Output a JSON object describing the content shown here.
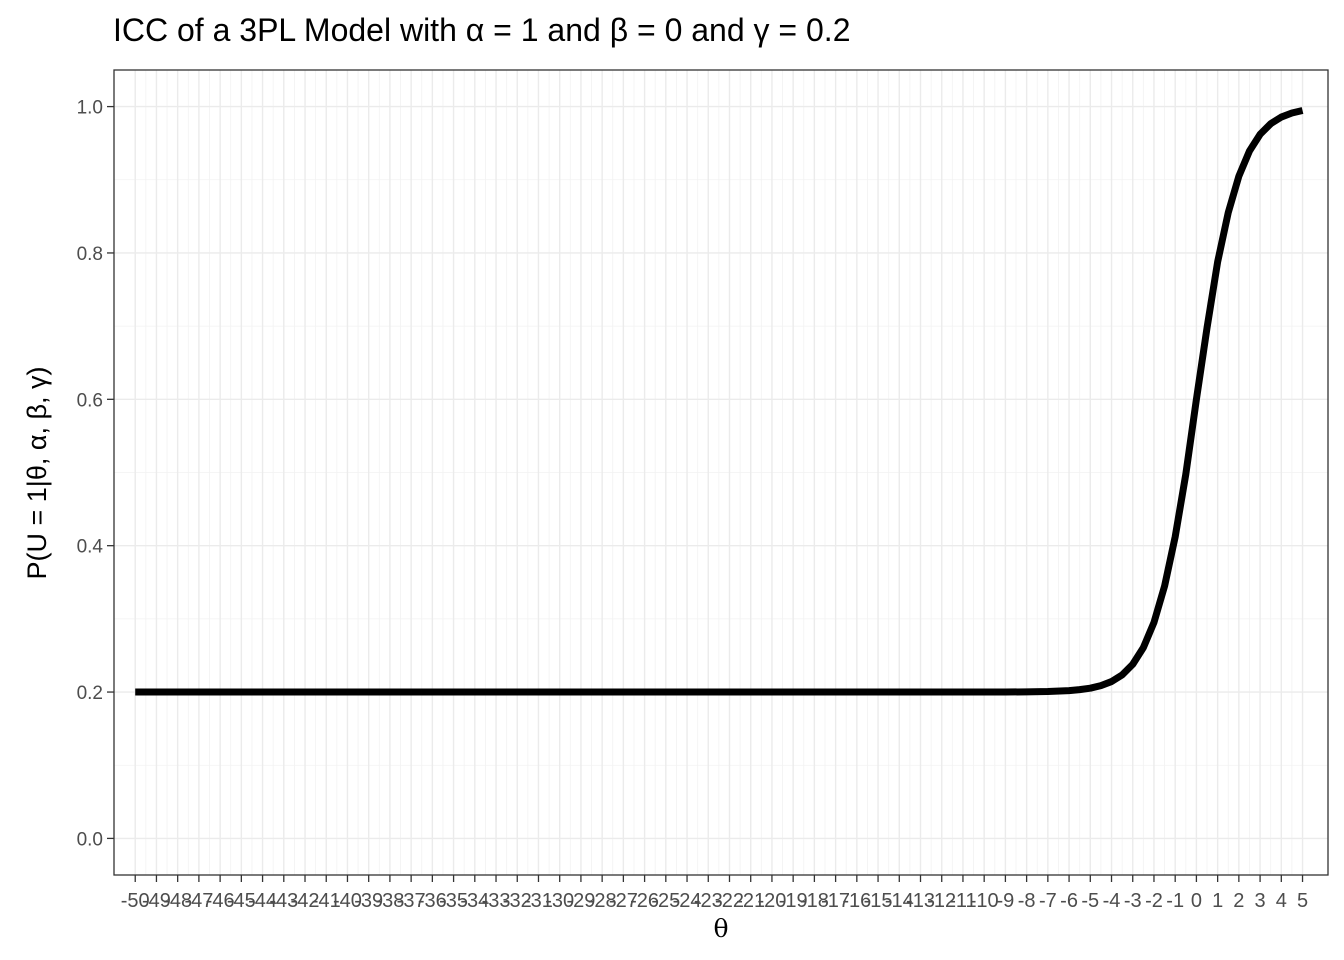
{
  "chart_data": {
    "type": "line",
    "title": "ICC of a 3PL Model with α = 1 and β = 0 and γ = 0.2",
    "xlabel": "θ",
    "ylabel": "P(U = 1|θ, α, β, γ)",
    "xlim": [
      -51,
      6.2
    ],
    "ylim": [
      -0.05,
      1.05
    ],
    "x_ticks": [
      -50,
      -49,
      -48,
      -47,
      -46,
      -45,
      -44,
      -43,
      -42,
      -41,
      -40,
      -39,
      -38,
      -37,
      -36,
      -35,
      -34,
      -33,
      -32,
      -31,
      -30,
      -29,
      -28,
      -27,
      -26,
      -25,
      -24,
      -23,
      -22,
      -21,
      -20,
      -19,
      -18,
      -17,
      -16,
      -15,
      -14,
      -13,
      -12,
      -11,
      -10,
      -9,
      -8,
      -7,
      -6,
      -5,
      -4,
      -3,
      -2,
      -1,
      0,
      1,
      2,
      3,
      4,
      5
    ],
    "y_ticks": [
      0.0,
      0.2,
      0.4,
      0.6,
      0.8,
      1.0
    ],
    "y_tick_labels": [
      "0.0",
      "0.2",
      "0.4",
      "0.6",
      "0.8",
      "1.0"
    ],
    "grid": true,
    "legend": "none",
    "series": [
      {
        "color": "#000000",
        "x": [
          -50,
          -45,
          -40,
          -35,
          -30,
          -25,
          -20,
          -15,
          -12,
          -10,
          -9,
          -8,
          -7,
          -6,
          -5.5,
          -5,
          -4.5,
          -4,
          -3.5,
          -3,
          -2.5,
          -2,
          -1.5,
          -1,
          -0.5,
          0,
          0.5,
          1,
          1.5,
          2,
          2.5,
          3,
          3.5,
          4,
          4.5,
          5
        ],
        "y": [
          0.2,
          0.2,
          0.2,
          0.2,
          0.2,
          0.2,
          0.2,
          0.2,
          0.2,
          0.2,
          0.2,
          0.2003,
          0.2007,
          0.202,
          0.2033,
          0.2053,
          0.2088,
          0.2143,
          0.2234,
          0.2379,
          0.2607,
          0.2951,
          0.3448,
          0.4122,
          0.4976,
          0.6,
          0.6976,
          0.7878,
          0.8552,
          0.9049,
          0.9393,
          0.9621,
          0.9766,
          0.9857,
          0.9912,
          0.9947
        ]
      }
    ]
  }
}
